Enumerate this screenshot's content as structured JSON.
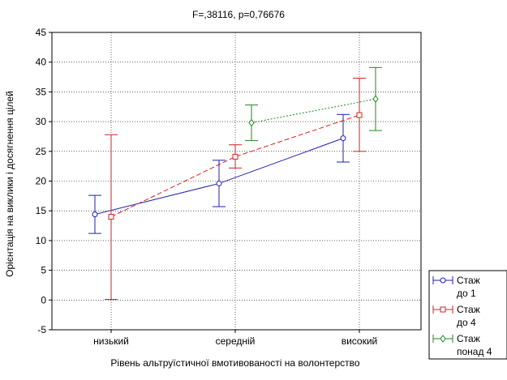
{
  "chart_data": {
    "type": "line",
    "title": "F=,38116, p=0,76676",
    "xlabel": "Рівень альтруїстичної вмотивованості на волонтерство",
    "ylabel": "Орієнтація на виклики і досягнення цілей",
    "categories": [
      "низький",
      "середній",
      "високий"
    ],
    "ylim": [
      -5,
      45
    ],
    "yticks": [
      -5,
      0,
      5,
      10,
      15,
      20,
      25,
      30,
      35,
      40,
      45
    ],
    "grid": true,
    "legend_position": "bottom-right",
    "series": [
      {
        "name_lines": [
          "Стаж",
          "до 1"
        ],
        "color": "#1f1fb4",
        "marker": "circle",
        "line_style": "solid",
        "points": [
          {
            "category": "низький",
            "mean": 14.4,
            "lower": 11.2,
            "upper": 17.6
          },
          {
            "category": "середній",
            "mean": 19.6,
            "lower": 15.7,
            "upper": 23.5
          },
          {
            "category": "високий",
            "mean": 27.2,
            "lower": 23.2,
            "upper": 31.2
          }
        ]
      },
      {
        "name_lines": [
          "Стаж",
          "до 4"
        ],
        "color": "#d62020",
        "marker": "square",
        "line_style": "dashed",
        "points": [
          {
            "category": "низький",
            "mean": 14.0,
            "lower": 0.1,
            "upper": 27.8
          },
          {
            "category": "середній",
            "mean": 24.1,
            "lower": 22.2,
            "upper": 26.1
          },
          {
            "category": "високий",
            "mean": 31.1,
            "lower": 25.0,
            "upper": 37.3
          }
        ]
      },
      {
        "name_lines": [
          "Стаж",
          "понад 4"
        ],
        "color": "#1e8a1e",
        "marker": "diamond",
        "line_style": "dotted",
        "points": [
          {
            "category": "середній",
            "mean": 29.8,
            "lower": 26.8,
            "upper": 32.8
          },
          {
            "category": "високий",
            "mean": 33.8,
            "lower": 28.5,
            "upper": 39.1
          }
        ]
      }
    ]
  }
}
